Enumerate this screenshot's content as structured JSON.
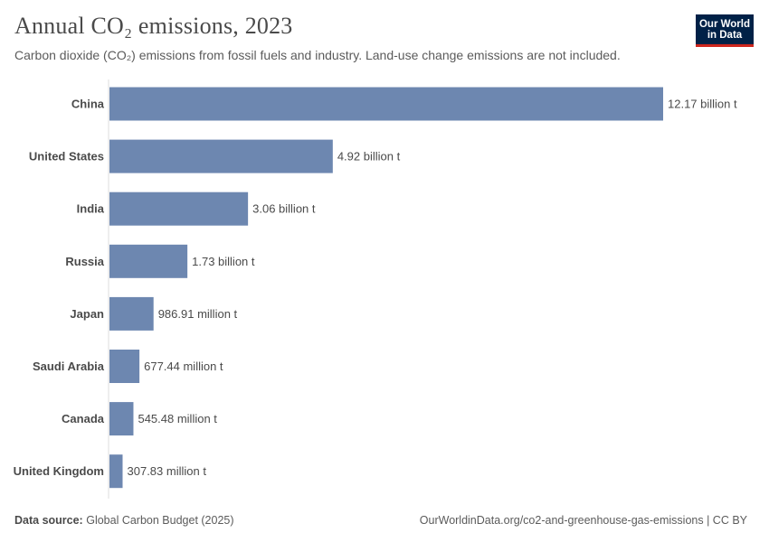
{
  "title": "Annual CO₂ emissions, 2023",
  "subtitle": "Carbon dioxide (CO₂) emissions from fossil fuels and industry. Land-use change emissions are not included.",
  "logo": {
    "line1": "Our World",
    "line2": "in Data"
  },
  "footer": {
    "source_label": "Data source:",
    "source_value": "Global Carbon Budget (2025)",
    "url": "OurWorldinData.org/co2-and-greenhouse-gas-emissions | CC BY"
  },
  "colors": {
    "bar": "#6d87b0",
    "label": "#4a4a4a",
    "axis": "#dcdcdc"
  },
  "chart_data": {
    "type": "bar",
    "orientation": "horizontal",
    "categories": [
      "China",
      "United States",
      "India",
      "Russia",
      "Japan",
      "Saudi Arabia",
      "Canada",
      "United Kingdom"
    ],
    "values": [
      12170000000,
      4920000000,
      3060000000,
      1730000000,
      986910000,
      677440000,
      545480000,
      307830000
    ],
    "data_labels": [
      "12.17 billion t",
      "4.92 billion t",
      "3.06 billion t",
      "1.73 billion t",
      "986.91 million t",
      "677.44 million t",
      "545.48 million t",
      "307.83 million t"
    ],
    "unit": "t",
    "xlim": [
      0,
      12170000000
    ]
  }
}
